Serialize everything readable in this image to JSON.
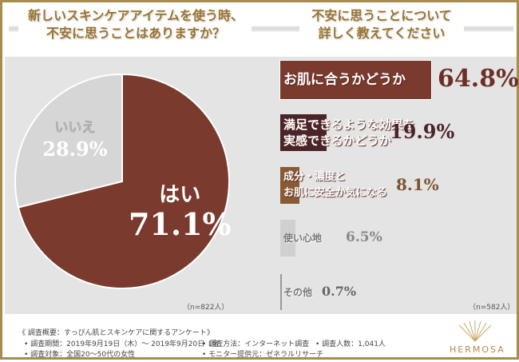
{
  "chart_data": [
    {
      "type": "pie",
      "title": "新しいスキンケアアイテムを使う時、不安に思うことはありますか？",
      "slices": [
        {
          "label": "はい",
          "value": 71.1,
          "display": "71.1%",
          "color": "#7a3a2e"
        },
        {
          "label": "いいえ",
          "value": 28.9,
          "display": "28.9%",
          "color": "#d6d6d6"
        }
      ],
      "note": "（n=822人）"
    },
    {
      "type": "bar",
      "orientation": "horizontal",
      "title": "不安に思うことについて詳しく教えてください",
      "categories": [
        [
          "お肌に合うかどうか"
        ],
        [
          "満足できるような効果を",
          "実感できるかどうか"
        ],
        [
          "成分・濃度と",
          "お肌に安全か気になる"
        ],
        [
          "使い心地"
        ],
        [
          "その他"
        ]
      ],
      "values": [
        64.8,
        19.9,
        8.1,
        6.5,
        0.7
      ],
      "display": [
        "64.8%",
        "19.9%",
        "8.1%",
        "6.5%",
        "0.7%"
      ],
      "colors": [
        "#7a3a2e",
        "#4a2428",
        "#8a5a32",
        "#d0d0d0",
        "#9a9a9a"
      ],
      "value_colors": [
        "#6b2f28",
        "#4a2428",
        "#7a5530",
        "#888888",
        "#666666"
      ],
      "note": "（n=582人）"
    }
  ],
  "footer": {
    "summary": "《 調査概要：すっぴん肌とスキンケアに関するアンケート》",
    "period": "• 調査期間：2019年9月19日（木）～ 2019年9月20日（金",
    "method": "• 調査方法：インターネット調査",
    "count": "• 調査人数：1,041人",
    "target": "• 調査対象：全国20～50代の女性",
    "provider": "• モニター提供元：ゼネラルリサーチ",
    "brand": "HERMOSA"
  }
}
